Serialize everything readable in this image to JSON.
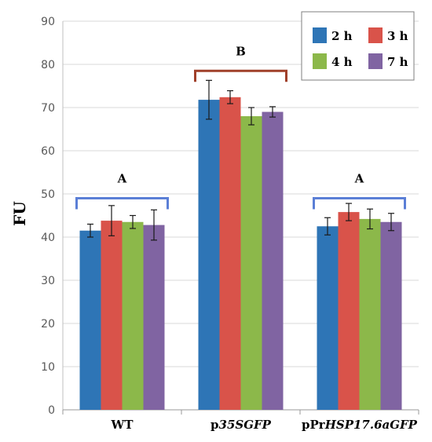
{
  "chart_data": {
    "type": "bar",
    "title": "",
    "xlabel": "",
    "ylabel": "FU",
    "ylim": [
      0,
      90
    ],
    "yticks": [
      0,
      10,
      20,
      30,
      40,
      50,
      60,
      70,
      80,
      90
    ],
    "grid": true,
    "legend_position": "top-right",
    "categories": [
      {
        "parts": [
          {
            "text": "WT",
            "italic": false
          }
        ]
      },
      {
        "parts": [
          {
            "text": "p",
            "italic": false
          },
          {
            "text": "35SGFP",
            "italic": true
          }
        ]
      },
      {
        "parts": [
          {
            "text": "pPr",
            "italic": false
          },
          {
            "text": "HSP17.6aGFP",
            "italic": true
          }
        ]
      }
    ],
    "series": [
      {
        "name": "2 h",
        "color": "#2E75B6",
        "values": [
          41.5,
          71.8,
          42.5
        ],
        "errors": [
          1.5,
          4.5,
          2.0
        ]
      },
      {
        "name": "3 h",
        "color": "#D9534A",
        "values": [
          43.8,
          72.4,
          45.8
        ],
        "errors": [
          3.5,
          1.5,
          2.0
        ]
      },
      {
        "name": "4 h",
        "color": "#8CB84A",
        "values": [
          43.5,
          68.0,
          44.2
        ],
        "errors": [
          1.5,
          2.0,
          2.3
        ]
      },
      {
        "name": "7 h",
        "color": "#8064A2",
        "values": [
          42.8,
          69.0,
          43.5
        ],
        "errors": [
          3.5,
          1.2,
          2.0
        ]
      }
    ],
    "annotations": [
      {
        "label": "A",
        "category": 0,
        "level": 49,
        "bracket_color": "#5B7FD6"
      },
      {
        "label": "B",
        "category": 1,
        "level": 78.5,
        "bracket_color": "#A0402A"
      },
      {
        "label": "A",
        "category": 2,
        "level": 49,
        "bracket_color": "#5B7FD6"
      }
    ]
  }
}
